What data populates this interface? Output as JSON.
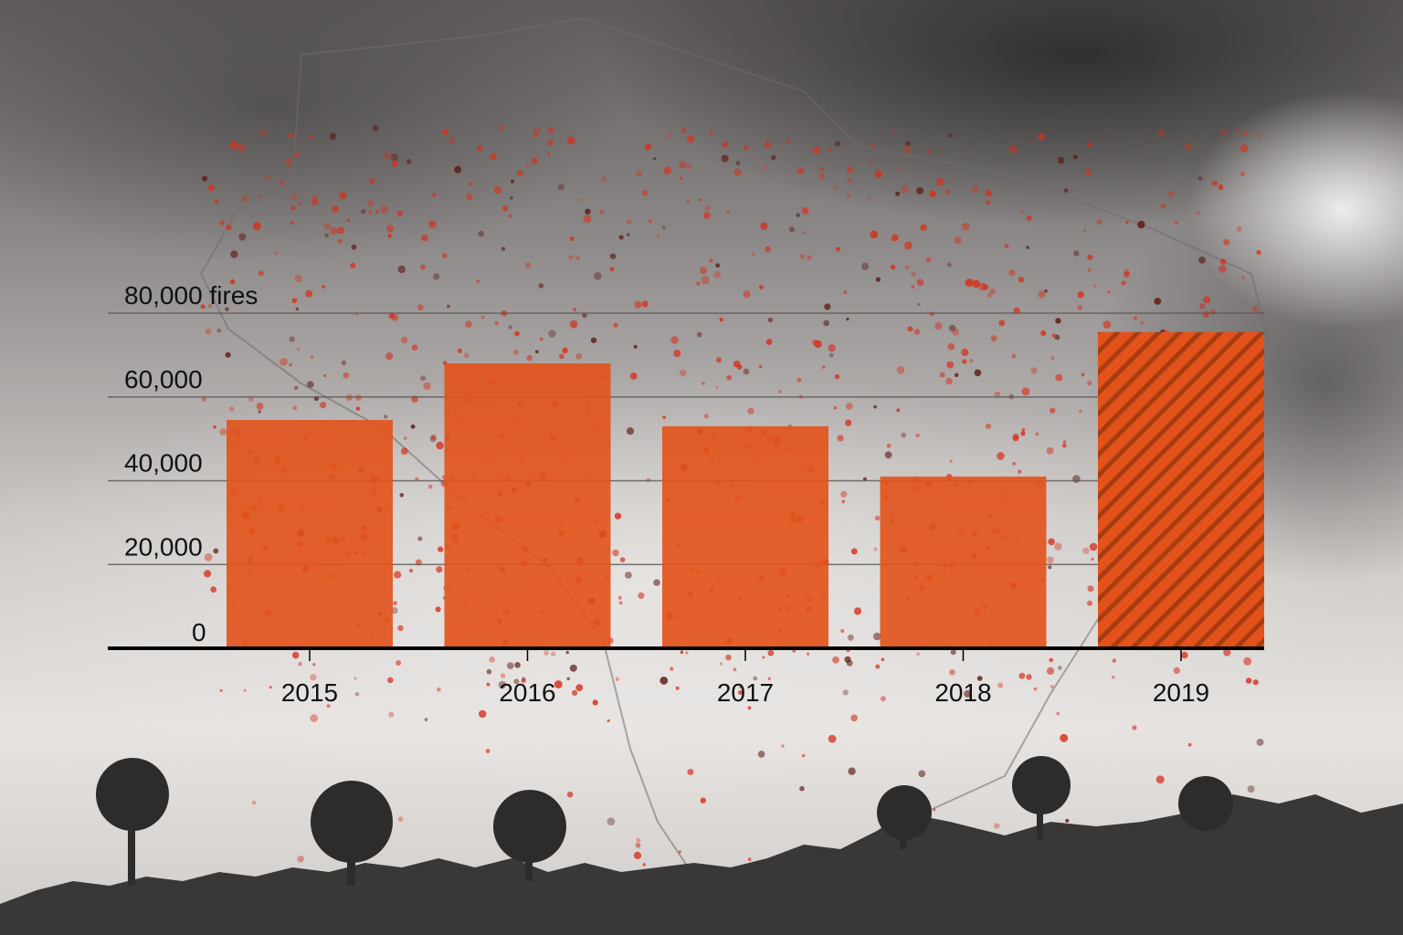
{
  "chart_data": {
    "type": "bar",
    "categories": [
      "2015",
      "2016",
      "2017",
      "2018",
      "2019"
    ],
    "values": [
      54500,
      68000,
      53000,
      41000,
      75500
    ],
    "highlighted": [
      "2019"
    ],
    "y_ticks": [
      {
        "value": 0,
        "label": "0"
      },
      {
        "value": 20000,
        "label": "20,000"
      },
      {
        "value": 40000,
        "label": "40,000"
      },
      {
        "value": 60000,
        "label": "60,000"
      },
      {
        "value": 80000,
        "label": "80,000 fires"
      }
    ],
    "ylim": [
      0,
      80000
    ],
    "grid": true,
    "title": "",
    "xlabel": "",
    "ylabel": ""
  },
  "colors": {
    "bar": "#e2521a",
    "highlight_stripe": "#b3410f",
    "gridline": "#5a5654",
    "axis": "#000000",
    "text": "#111111",
    "smoke_light": "#eceae8",
    "smoke_dark": "#3b3938",
    "fire_dot": "#d6301c"
  },
  "background": {
    "description_icon": "brazil-fire-map-smoke-photo"
  }
}
